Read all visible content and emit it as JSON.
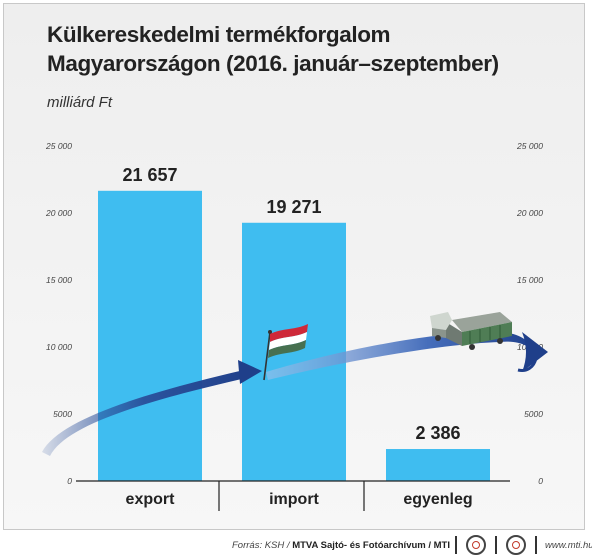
{
  "title_line1": "Külkereskedelmi termékforgalom",
  "title_line2": "Magyarországon (2016. január–szeptember)",
  "unit_label": "milliárd Ft",
  "chart_data": {
    "type": "bar",
    "title": "Külkereskedelmi termékforgalom Magyarországon (2016. január–szeptember)",
    "ylabel": "milliárd Ft",
    "categories": [
      "export",
      "import",
      "egyenleg"
    ],
    "values": [
      21657,
      19271,
      2386
    ],
    "value_labels": [
      "21 657",
      "19 271",
      "2 386"
    ],
    "yticks": [
      0,
      5000,
      10000,
      15000,
      20000,
      25000
    ],
    "ytick_labels": [
      "0",
      "5000",
      "10 000",
      "15 000",
      "20 000",
      "25 000"
    ],
    "ylim": [
      0,
      25000
    ],
    "grid": false,
    "legend": "none",
    "bar_color": "#3fbdf0"
  },
  "footer": {
    "source_prefix": "Forrás: KSH / ",
    "source_agency": "MTVA Sajtó- és Fotóarchívum / MTI",
    "website": "www.mti.hu"
  },
  "colors": {
    "arrow_dark": "#1f3f8a",
    "arrow_light": "#8fb4e6",
    "flag_red": "#ce2939",
    "flag_white": "#ffffff",
    "flag_green": "#477050"
  },
  "icons": [
    "hungarian-flag-icon",
    "truck-icon",
    "mtva-logo-icon",
    "mti-logo-icon"
  ]
}
